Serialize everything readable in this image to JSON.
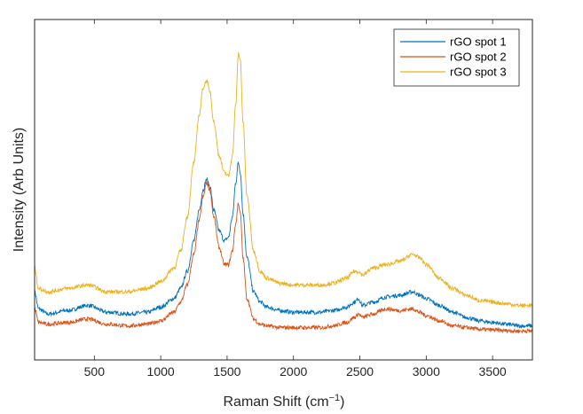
{
  "chart_data": {
    "type": "line",
    "title": "",
    "xlabel": "Raman Shift (cm",
    "xlabel_sup": "−1",
    "xlabel_end": ")",
    "ylabel": "Intensity (Arb Units)",
    "xlim": [
      50,
      3800
    ],
    "ylim": [
      0,
      1
    ],
    "xticks": [
      500,
      1000,
      1500,
      2000,
      2500,
      3000,
      3500
    ],
    "xtick_labels": [
      "500",
      "1000",
      "1500",
      "2000",
      "2500",
      "3000",
      "3500"
    ],
    "yticks": [],
    "grid": false,
    "legend_position": "top-right",
    "series": [
      {
        "name": "rGO spot 1",
        "color": "#0072BD",
        "x": [
          50,
          80,
          150,
          300,
          450,
          600,
          750,
          900,
          1000,
          1100,
          1150,
          1200,
          1250,
          1290,
          1320,
          1345,
          1370,
          1400,
          1440,
          1480,
          1510,
          1540,
          1565,
          1585,
          1600,
          1620,
          1650,
          1700,
          1750,
          1800,
          1900,
          2000,
          2100,
          2200,
          2300,
          2400,
          2460,
          2490,
          2520,
          2600,
          2700,
          2800,
          2900,
          2950,
          3000,
          3100,
          3200,
          3300,
          3400,
          3500,
          3600,
          3700,
          3800
        ],
        "y": [
          0.2,
          0.15,
          0.135,
          0.145,
          0.16,
          0.14,
          0.135,
          0.14,
          0.155,
          0.18,
          0.21,
          0.26,
          0.35,
          0.44,
          0.5,
          0.53,
          0.51,
          0.44,
          0.38,
          0.35,
          0.36,
          0.42,
          0.52,
          0.58,
          0.55,
          0.43,
          0.3,
          0.2,
          0.17,
          0.155,
          0.145,
          0.14,
          0.14,
          0.14,
          0.145,
          0.155,
          0.17,
          0.18,
          0.16,
          0.17,
          0.185,
          0.19,
          0.2,
          0.19,
          0.18,
          0.16,
          0.14,
          0.125,
          0.115,
          0.11,
          0.105,
          0.1,
          0.1
        ]
      },
      {
        "name": "rGO spot 2",
        "color": "#D95319",
        "x": [
          50,
          80,
          150,
          300,
          450,
          600,
          750,
          900,
          1000,
          1100,
          1150,
          1200,
          1250,
          1290,
          1320,
          1345,
          1370,
          1400,
          1440,
          1480,
          1510,
          1540,
          1565,
          1585,
          1600,
          1620,
          1650,
          1700,
          1750,
          1800,
          1900,
          2000,
          2100,
          2200,
          2300,
          2400,
          2460,
          2490,
          2520,
          2600,
          2700,
          2800,
          2900,
          2950,
          3000,
          3100,
          3200,
          3300,
          3400,
          3500,
          3600,
          3700,
          3800
        ],
        "y": [
          0.15,
          0.11,
          0.105,
          0.11,
          0.12,
          0.105,
          0.1,
          0.105,
          0.115,
          0.14,
          0.17,
          0.22,
          0.31,
          0.41,
          0.48,
          0.52,
          0.5,
          0.42,
          0.33,
          0.28,
          0.28,
          0.32,
          0.4,
          0.46,
          0.43,
          0.3,
          0.18,
          0.12,
          0.105,
          0.1,
          0.095,
          0.095,
          0.095,
          0.095,
          0.1,
          0.11,
          0.125,
          0.135,
          0.125,
          0.135,
          0.15,
          0.145,
          0.15,
          0.14,
          0.13,
          0.115,
          0.1,
          0.095,
          0.09,
          0.088,
          0.086,
          0.085,
          0.085
        ]
      },
      {
        "name": "rGO spot 3",
        "color": "#EDB120",
        "x": [
          50,
          80,
          150,
          300,
          450,
          600,
          750,
          900,
          1000,
          1100,
          1150,
          1200,
          1250,
          1290,
          1320,
          1345,
          1370,
          1400,
          1440,
          1480,
          1510,
          1540,
          1565,
          1585,
          1600,
          1620,
          1650,
          1700,
          1750,
          1800,
          1900,
          2000,
          2100,
          2200,
          2300,
          2400,
          2460,
          2490,
          2520,
          2600,
          2700,
          2800,
          2900,
          2950,
          3000,
          3100,
          3200,
          3300,
          3400,
          3500,
          3600,
          3700,
          3800
        ],
        "y": [
          0.27,
          0.21,
          0.2,
          0.21,
          0.22,
          0.2,
          0.2,
          0.21,
          0.23,
          0.27,
          0.32,
          0.42,
          0.58,
          0.72,
          0.8,
          0.82,
          0.79,
          0.7,
          0.6,
          0.55,
          0.54,
          0.6,
          0.75,
          0.9,
          0.88,
          0.7,
          0.48,
          0.32,
          0.26,
          0.24,
          0.225,
          0.22,
          0.22,
          0.22,
          0.225,
          0.24,
          0.26,
          0.26,
          0.25,
          0.27,
          0.28,
          0.29,
          0.31,
          0.3,
          0.28,
          0.24,
          0.21,
          0.19,
          0.175,
          0.17,
          0.165,
          0.16,
          0.16
        ]
      }
    ]
  }
}
